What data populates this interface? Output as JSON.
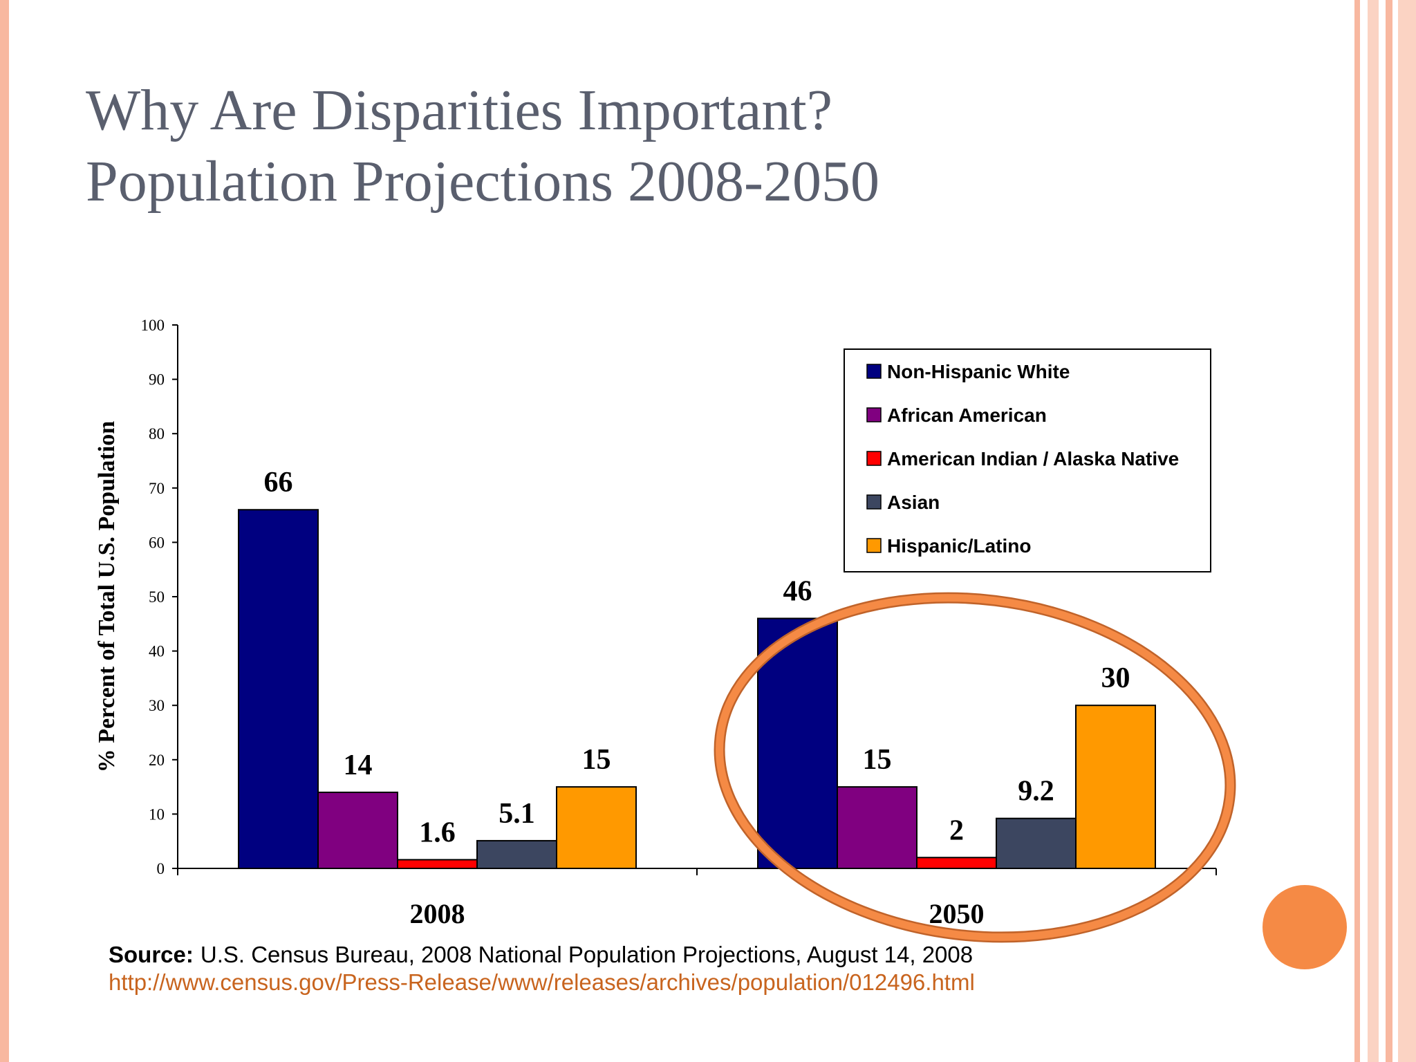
{
  "slide": {
    "title_lines": [
      "Why Are Disparities Important?",
      "Population Projections 2008-2050"
    ],
    "source": {
      "label": "Source:",
      "text": "U.S. Census Bureau, 2008 National Population Projections, August 14, 2008",
      "url": "http://www.census.gov/Press-Release/www/releases/archives/population/012496.html"
    }
  },
  "chart_data": {
    "type": "bar",
    "y_label": "% Percent of Total U.S. Population",
    "categories": [
      "2008",
      "2050"
    ],
    "series": [
      {
        "name": "Non-Hispanic White",
        "color": "#000080",
        "values": [
          66,
          46
        ]
      },
      {
        "name": "African American",
        "color": "#800080",
        "values": [
          14,
          15
        ]
      },
      {
        "name": "American Indian / Alaska Native",
        "color": "#ff0000",
        "values": [
          1.6,
          2
        ]
      },
      {
        "name": "Asian",
        "color": "#3c4660",
        "values": [
          5.1,
          9.2
        ]
      },
      {
        "name": "Hispanic/Latino",
        "color": "#ff9900",
        "values": [
          15,
          30
        ]
      }
    ],
    "ylim": [
      0,
      100
    ],
    "yticks": [
      0,
      10,
      20,
      30,
      40,
      50,
      60,
      70,
      80,
      90,
      100
    ],
    "legend": "upper right",
    "data_labels": true
  }
}
